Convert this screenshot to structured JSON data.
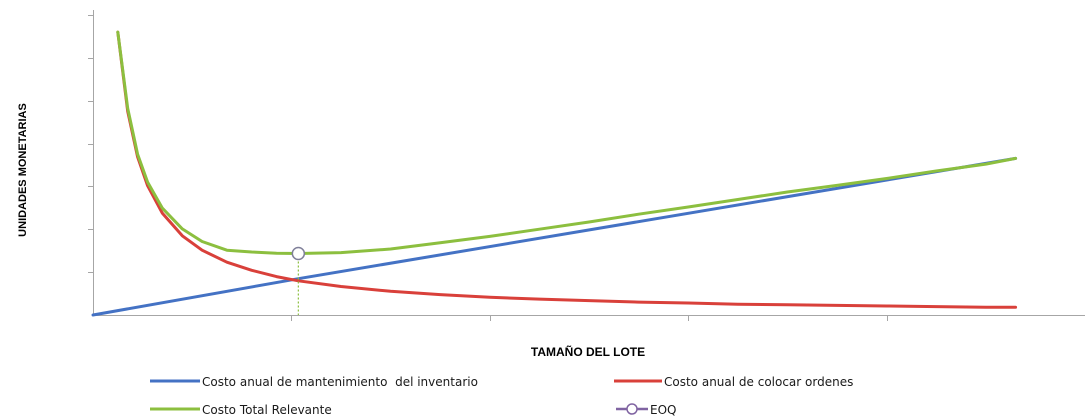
{
  "chart_data": {
    "type": "line",
    "title": "",
    "xlabel": "TAMAÑO DEL LOTE",
    "ylabel": "UNIDADES MONETARIAS",
    "xlim": [
      0,
      100
    ],
    "ylim": [
      0,
      100
    ],
    "grid": false,
    "legend_position": "bottom",
    "x_ticks": [
      20,
      40,
      60,
      80
    ],
    "y_ticks": [
      14.3,
      28.6,
      42.9,
      57.1,
      71.4,
      85.7,
      100
    ],
    "series": [
      {
        "name": "Costo anual de mantenimiento  del inventario",
        "color": "#4472c4",
        "x": [
          0,
          20.7,
          93
        ],
        "y": [
          0,
          12.1,
          52.2
        ]
      },
      {
        "name": "Costo anual de colocar ordenes",
        "color": "#d9403a",
        "x": [
          2.5,
          3.5,
          4.5,
          5.5,
          7,
          9,
          11,
          13.5,
          16,
          18.5,
          20.7,
          25,
          30,
          35,
          40,
          45,
          50,
          55,
          60,
          65,
          70,
          75,
          80,
          85,
          90,
          93
        ],
        "y": [
          94.3,
          67.9,
          52.7,
          43.1,
          33.9,
          26.4,
          21.6,
          17.6,
          14.9,
          12.8,
          11.4,
          9.5,
          7.9,
          6.8,
          5.9,
          5.3,
          4.8,
          4.3,
          4.0,
          3.6,
          3.4,
          3.2,
          3.0,
          2.8,
          2.6,
          2.6
        ]
      },
      {
        "name": "Costo Total Relevante",
        "color": "#8cbf3f",
        "x": [
          2.5,
          3.5,
          4.5,
          5.5,
          7,
          9,
          11,
          13.5,
          16,
          18.5,
          20.7,
          25,
          30,
          35,
          40,
          45,
          50,
          55,
          60,
          65,
          70,
          75,
          80,
          85,
          90,
          93
        ],
        "y": [
          94.3,
          68.9,
          53.6,
          44.3,
          35.6,
          28.7,
          24.5,
          21.6,
          21.0,
          20.6,
          20.5,
          20.8,
          22.0,
          24.1,
          26.2,
          28.6,
          31.0,
          33.6,
          36.0,
          38.5,
          41.0,
          43.2,
          45.5,
          48.0,
          50.3,
          52.2
        ]
      }
    ],
    "markers": [
      {
        "name": "EOQ",
        "color": "#8064a2",
        "x": 20.7,
        "y": 20.5
      }
    ],
    "annotations": [
      {
        "type": "dotted-drop-line",
        "x": 20.7,
        "from_y": 20.5,
        "to_y": 0,
        "color": "#8cbf3f"
      }
    ]
  },
  "legend": {
    "items": [
      {
        "label": "Costo anual de mantenimiento  del inventario",
        "color": "#4472c4",
        "symbol": "line"
      },
      {
        "label": "Costo anual de colocar ordenes",
        "color": "#d9403a",
        "symbol": "line"
      },
      {
        "label": "Costo Total Relevante",
        "color": "#8cbf3f",
        "symbol": "line"
      },
      {
        "label": "EOQ",
        "color": "#8064a2",
        "symbol": "line-marker"
      }
    ]
  }
}
